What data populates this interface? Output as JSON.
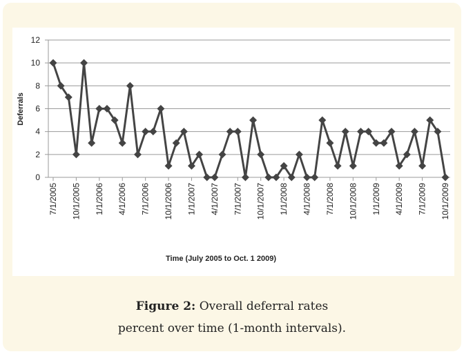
{
  "chart_data": {
    "type": "line",
    "x_label": "Time (July 2005 to Oct. 1 2009)",
    "y_label": "Deferrals",
    "categories": [
      "7/1/2005",
      null,
      null,
      "10/1/2005",
      null,
      null,
      "1/1/2006",
      null,
      null,
      "4/1/2006",
      null,
      null,
      "7/1/2006",
      null,
      null,
      "10/1/2006",
      null,
      null,
      "1/1/2007",
      null,
      null,
      "4/1/2007",
      null,
      null,
      "7/1/2007",
      null,
      null,
      "10/1/2007",
      null,
      null,
      "1/1/2008",
      null,
      null,
      "4/1/2008",
      null,
      null,
      "7/1/2008",
      null,
      null,
      "10/1/2008",
      null,
      null,
      "1/1/2009",
      null,
      null,
      "4/1/2009",
      null,
      null,
      "7/1/2009",
      null,
      null,
      "10/1/2009"
    ],
    "values": [
      10,
      8,
      7,
      2,
      10,
      3,
      6,
      6,
      5,
      3,
      8,
      2,
      4,
      4,
      6,
      1,
      3,
      4,
      1,
      2,
      0,
      0,
      2,
      4,
      4,
      0,
      5,
      2,
      0,
      0,
      1,
      0,
      2,
      0,
      0,
      5,
      3,
      1,
      4,
      1,
      4,
      4,
      3,
      3,
      4,
      1,
      2,
      4,
      1,
      5,
      4,
      0
    ],
    "color": "#444444",
    "ylim": [
      0,
      12
    ],
    "yticks": [
      0,
      2,
      4,
      6,
      8,
      10,
      12
    ],
    "grid": true,
    "caption_label": "Figure 2:",
    "caption_text": "Overall deferral rates percent over time (1-month intervals)."
  }
}
